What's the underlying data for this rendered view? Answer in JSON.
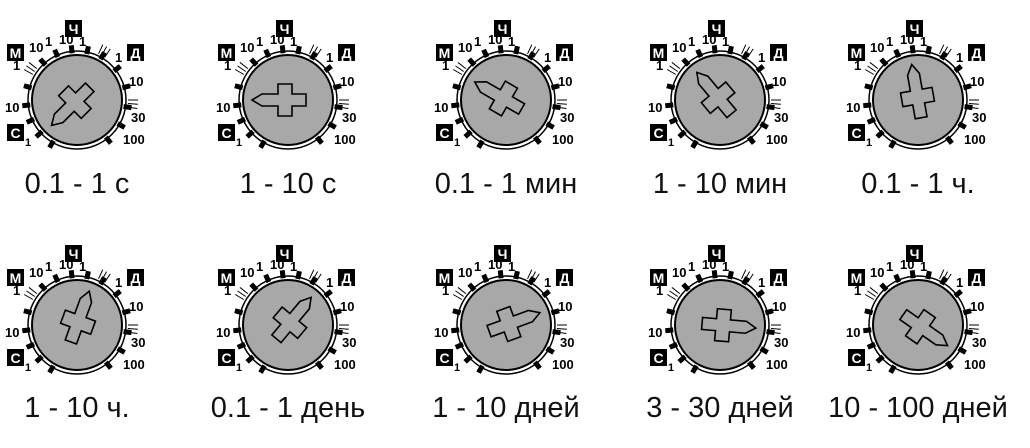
{
  "dial_labels": {
    "hours": "Ч",
    "days": "Д",
    "minutes": "М",
    "seconds": "С",
    "left_scale": [
      "10",
      "1",
      "10",
      "1"
    ],
    "top_scale": [
      "1",
      "10",
      "1",
      "10"
    ],
    "right_scale": [
      "1",
      "10",
      "30",
      "100"
    ]
  },
  "settings": [
    {
      "caption": "0.1 - 1 с",
      "pointer_deg": 225
    },
    {
      "caption": "1 - 10 с",
      "pointer_deg": 270
    },
    {
      "caption": "0.1 - 1 мин",
      "pointer_deg": 300
    },
    {
      "caption": "1 - 10 мин",
      "pointer_deg": 320
    },
    {
      "caption": "0.1 - 1 ч.",
      "pointer_deg": 350
    },
    {
      "caption": "1 - 10 ч.",
      "pointer_deg": 20
    },
    {
      "caption": "0.1 - 1 день",
      "pointer_deg": 40
    },
    {
      "caption": "1 - 10 дней",
      "pointer_deg": 70
    },
    {
      "caption": "3 - 30 дней",
      "pointer_deg": 95
    },
    {
      "caption": "10 - 100 дней",
      "pointer_deg": 125
    }
  ]
}
